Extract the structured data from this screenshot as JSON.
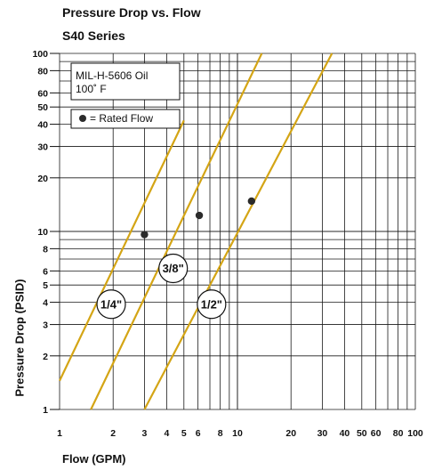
{
  "chart_data": {
    "type": "line",
    "title": "Pressure Drop vs. Flow",
    "subtitle": "S40 Series",
    "xlabel": "Flow (GPM)",
    "ylabel": "Pressure Drop (PSID)",
    "xscale": "log",
    "yscale": "log",
    "xlim": [
      1,
      100
    ],
    "ylim": [
      1,
      100
    ],
    "grid": true,
    "x_ticks": [
      1,
      2,
      3,
      4,
      5,
      6,
      8,
      10,
      20,
      30,
      40,
      50,
      60,
      80,
      100
    ],
    "x_tick_labels": [
      "1",
      "2",
      "3",
      "4",
      "5",
      "6",
      "8",
      "10",
      "20",
      "30",
      "40",
      "50",
      "60",
      "80",
      "100"
    ],
    "y_ticks": [
      1,
      2,
      3,
      4,
      5,
      6,
      8,
      10,
      20,
      30,
      40,
      50,
      60,
      80,
      100
    ],
    "y_tick_labels": [
      "1",
      "2",
      "3",
      "4",
      "5",
      "6",
      "8",
      "10",
      "20",
      "30",
      "40",
      "50",
      "60",
      "80",
      "100"
    ],
    "legend": {
      "placement": "top-left",
      "fluid_line1": "MIL-H-5606 Oil",
      "fluid_line2": "100˚ F",
      "marker_label": "= Rated Flow"
    },
    "line_color": "#d4a515",
    "series": [
      {
        "name": "1/4\"",
        "x": [
          1,
          5.0
        ],
        "y": [
          1.45,
          42
        ],
        "rated_flow": {
          "x": 3.0,
          "y": 9.6
        },
        "label_at": {
          "x": 1.95,
          "y": 3.9
        }
      },
      {
        "name": "3/8\"",
        "x": [
          1.5,
          13.7
        ],
        "y": [
          1.0,
          100
        ],
        "rated_flow": {
          "x": 6.1,
          "y": 12.3
        },
        "label_at": {
          "x": 4.35,
          "y": 6.2
        }
      },
      {
        "name": "1/2\"",
        "x": [
          3.0,
          34.0
        ],
        "y": [
          1.0,
          100
        ],
        "rated_flow": {
          "x": 12.0,
          "y": 14.8
        },
        "label_at": {
          "x": 7.15,
          "y": 3.9
        }
      }
    ]
  }
}
